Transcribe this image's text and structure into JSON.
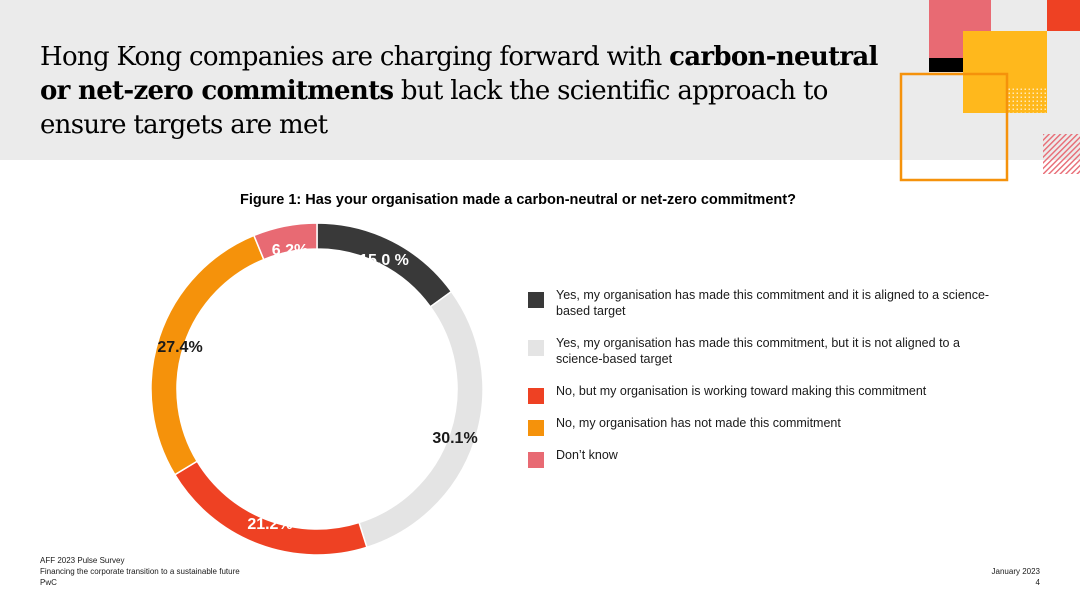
{
  "slide": {
    "title_part1": "Hong Kong companies are charging forward with ",
    "title_bold": "carbon-neutral or net-zero commitments",
    "title_part2": " but lack the scientific approach to ensure targets are met",
    "figure_title": "Figure 1: Has your organisation made a carbon-neutral or net-zero commitment?"
  },
  "chart_data": {
    "type": "pie",
    "title": "Figure 1: Has your organisation made a carbon-neutral or net-zero commitment?",
    "series": [
      {
        "name": "Yes, my organisation has made this commitment and it is aligned to a science-based target",
        "value": 15.0,
        "label": "15.0 %",
        "color": "#393939"
      },
      {
        "name": "Yes, my organisation has made this commitment, but it is not aligned to a science-based target",
        "value": 30.1,
        "label": "30.1%",
        "color": "#e4e4e4"
      },
      {
        "name": "No, but my organisation is working toward making this commitment",
        "value": 21.2,
        "label": "21.2%",
        "color": "#ee4123"
      },
      {
        "name": "No, my organisation has not made this commitment",
        "value": 27.4,
        "label": "27.4%",
        "color": "#f5920b"
      },
      {
        "name": "Don’t know",
        "value": 6.2,
        "label": "6.2%",
        "color": "#e86a73"
      }
    ],
    "legend_position": "right"
  },
  "footer": {
    "survey": "AFF 2023 Pulse Survey",
    "subtitle": "Financing the corporate transition to a sustainable future",
    "brand": "PwC",
    "date": "January 2023",
    "page": "4"
  }
}
